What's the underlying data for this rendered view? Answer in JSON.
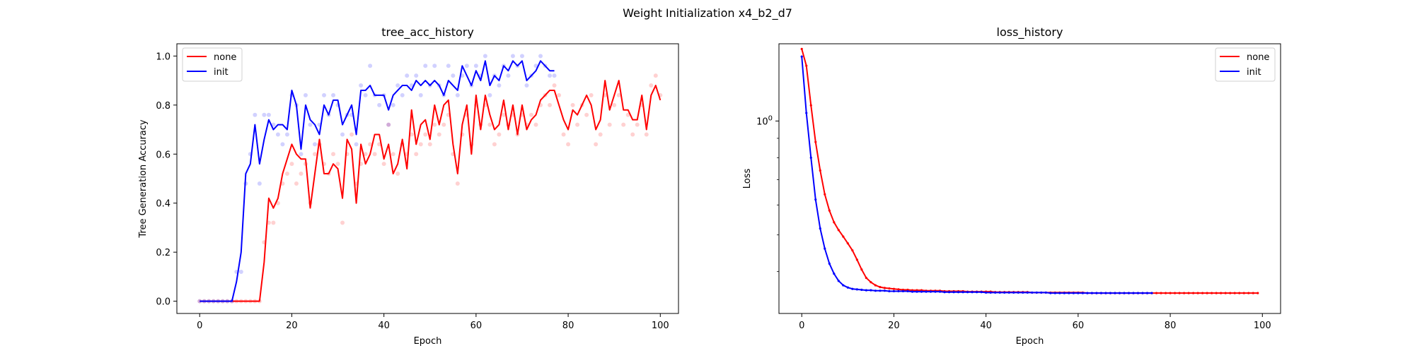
{
  "figure": {
    "suptitle": "Weight Initialization x4_b2_d7"
  },
  "colors": {
    "none": "#ff0000",
    "init": "#0000ff"
  },
  "chart_data": [
    {
      "type": "line",
      "title": "tree_acc_history",
      "xlabel": "Epoch",
      "ylabel": "Tree Generation Accuracy",
      "xlim": [
        -4.95,
        103.95
      ],
      "ylim": [
        -0.05,
        1.05
      ],
      "yscale": "linear",
      "xticks": [
        0,
        20,
        40,
        60,
        80,
        100
      ],
      "yticks": [
        0.0,
        0.2,
        0.4,
        0.6,
        0.8,
        1.0
      ],
      "xtick_labels": [
        "0",
        "20",
        "40",
        "60",
        "80",
        "100"
      ],
      "ytick_labels": [
        "0.0",
        "0.2",
        "0.4",
        "0.6",
        "0.8",
        "1.0"
      ],
      "legend_loc": "upper left",
      "grid": false,
      "series": [
        {
          "name": "none",
          "color": "#ff0000",
          "x_start": 0,
          "values": [
            0,
            0,
            0,
            0,
            0,
            0,
            0,
            0,
            0,
            0,
            0,
            0,
            0,
            0,
            0.16,
            0.42,
            0.38,
            0.42,
            0.52,
            0.58,
            0.64,
            0.6,
            0.58,
            0.58,
            0.38,
            0.52,
            0.66,
            0.52,
            0.52,
            0.56,
            0.54,
            0.42,
            0.66,
            0.62,
            0.4,
            0.64,
            0.56,
            0.6,
            0.68,
            0.68,
            0.58,
            0.64,
            0.52,
            0.56,
            0.66,
            0.54,
            0.78,
            0.64,
            0.72,
            0.74,
            0.66,
            0.8,
            0.72,
            0.8,
            0.82,
            0.64,
            0.52,
            0.72,
            0.8,
            0.6,
            0.84,
            0.7,
            0.84,
            0.76,
            0.7,
            0.72,
            0.82,
            0.7,
            0.8,
            0.68,
            0.8,
            0.7,
            0.74,
            0.76,
            0.82,
            0.84,
            0.86,
            0.86,
            0.8,
            0.74,
            0.7,
            0.78,
            0.76,
            0.8,
            0.84,
            0.8,
            0.7,
            0.74,
            0.9,
            0.78,
            0.84,
            0.9,
            0.78,
            0.78,
            0.74,
            0.74,
            0.84,
            0.7,
            0.84,
            0.88,
            0.82
          ],
          "raw_scatter": [
            0,
            0,
            0,
            0,
            0,
            0,
            0,
            0,
            0,
            0,
            0,
            0,
            0,
            0,
            0.24,
            0.32,
            0.32,
            0.4,
            0.48,
            0.52,
            0.56,
            0.48,
            0.52,
            0.56,
            0.4,
            0.6,
            0.64,
            0.56,
            0.52,
            0.6,
            0.56,
            0.32,
            0.6,
            0.68,
            0.48,
            0.56,
            0.6,
            0.64,
            0.6,
            0.64,
            0.56,
            0.72,
            0.6,
            0.52,
            0.64,
            0.6,
            0.68,
            0.6,
            0.64,
            0.68,
            0.64,
            0.72,
            0.68,
            0.72,
            0.76,
            0.6,
            0.48,
            0.68,
            0.76,
            0.64,
            0.8,
            0.72,
            0.8,
            0.72,
            0.64,
            0.68,
            0.76,
            0.72,
            0.76,
            0.68,
            0.76,
            0.72,
            0.76,
            0.72,
            0.8,
            0.84,
            0.8,
            0.88,
            0.84,
            0.68,
            0.64,
            0.8,
            0.72,
            0.8,
            0.76,
            0.84,
            0.64,
            0.68,
            0.84,
            0.72,
            0.8,
            0.84,
            0.72,
            0.76,
            0.68,
            0.72,
            0.8,
            0.68,
            0.88,
            0.92,
            0.84
          ]
        },
        {
          "name": "init",
          "color": "#0000ff",
          "x_start": 0,
          "values": [
            0,
            0,
            0,
            0,
            0,
            0,
            0,
            0,
            0.08,
            0.2,
            0.52,
            0.56,
            0.72,
            0.56,
            0.66,
            0.74,
            0.7,
            0.72,
            0.72,
            0.7,
            0.86,
            0.8,
            0.62,
            0.8,
            0.74,
            0.72,
            0.68,
            0.8,
            0.76,
            0.82,
            0.82,
            0.72,
            0.76,
            0.8,
            0.68,
            0.86,
            0.86,
            0.88,
            0.84,
            0.84,
            0.84,
            0.78,
            0.84,
            0.86,
            0.88,
            0.88,
            0.86,
            0.9,
            0.88,
            0.9,
            0.88,
            0.9,
            0.88,
            0.84,
            0.9,
            0.88,
            0.86,
            0.96,
            0.92,
            0.88,
            0.94,
            0.9,
            0.98,
            0.88,
            0.92,
            0.9,
            0.96,
            0.94,
            0.98,
            0.96,
            0.98,
            0.9,
            0.92,
            0.94,
            0.98,
            0.96,
            0.94,
            0.94
          ],
          "raw_scatter": [
            0,
            0,
            0,
            0,
            0,
            0,
            0,
            0,
            0.12,
            0.12,
            0.48,
            0.6,
            0.76,
            0.48,
            0.76,
            0.76,
            0.72,
            0.68,
            0.64,
            0.68,
            0.84,
            0.8,
            0.6,
            0.84,
            0.72,
            0.64,
            0.72,
            0.84,
            0.76,
            0.84,
            0.8,
            0.68,
            0.76,
            0.76,
            0.64,
            0.88,
            0.84,
            0.96,
            0.84,
            0.8,
            0.84,
            0.72,
            0.8,
            0.88,
            0.84,
            0.92,
            0.88,
            0.92,
            0.84,
            0.96,
            0.88,
            0.96,
            0.88,
            0.84,
            0.96,
            0.92,
            0.84,
            0.92,
            0.96,
            0.88,
            0.96,
            0.92,
            1.0,
            0.84,
            0.92,
            0.88,
            0.96,
            0.92,
            1.0,
            0.96,
            1.0,
            0.88,
            0.92,
            0.96,
            1.0,
            0.96,
            0.92,
            0.92
          ]
        }
      ]
    },
    {
      "type": "line",
      "title": "loss_history",
      "xlabel": "Epoch",
      "ylabel": "Loss",
      "xlim": [
        -4.95,
        103.95
      ],
      "ylim": [
        0.31,
        1.6
      ],
      "yscale": "log",
      "xticks": [
        0,
        20,
        40,
        60,
        80,
        100
      ],
      "yticks": [
        1
      ],
      "xtick_labels": [
        "0",
        "20",
        "40",
        "60",
        "80",
        "100"
      ],
      "ytick_labels": [
        "10^0"
      ],
      "legend_loc": "upper right",
      "grid": false,
      "series": [
        {
          "name": "none",
          "color": "#ff0000",
          "x_start": 0,
          "values": [
            1.55,
            1.4,
            1.1,
            0.88,
            0.74,
            0.64,
            0.58,
            0.54,
            0.515,
            0.495,
            0.475,
            0.455,
            0.43,
            0.405,
            0.385,
            0.375,
            0.368,
            0.364,
            0.362,
            0.361,
            0.36,
            0.359,
            0.358,
            0.358,
            0.357,
            0.357,
            0.357,
            0.356,
            0.356,
            0.356,
            0.356,
            0.355,
            0.355,
            0.355,
            0.355,
            0.355,
            0.354,
            0.354,
            0.354,
            0.354,
            0.354,
            0.354,
            0.353,
            0.353,
            0.353,
            0.353,
            0.353,
            0.353,
            0.353,
            0.353,
            0.352,
            0.352,
            0.352,
            0.352,
            0.352,
            0.352,
            0.352,
            0.352,
            0.352,
            0.352,
            0.352,
            0.352,
            0.351,
            0.351,
            0.351,
            0.351,
            0.351,
            0.351,
            0.351,
            0.351,
            0.351,
            0.351,
            0.351,
            0.351,
            0.351,
            0.351,
            0.351,
            0.351,
            0.351,
            0.351,
            0.351,
            0.351,
            0.351,
            0.351,
            0.351,
            0.351,
            0.351,
            0.351,
            0.351,
            0.351,
            0.351,
            0.351,
            0.351,
            0.351,
            0.351,
            0.351,
            0.351,
            0.351,
            0.351,
            0.351
          ]
        },
        {
          "name": "init",
          "color": "#0000ff",
          "x_start": 0,
          "values": [
            1.48,
            1.05,
            0.8,
            0.62,
            0.52,
            0.46,
            0.42,
            0.395,
            0.378,
            0.368,
            0.363,
            0.36,
            0.359,
            0.358,
            0.357,
            0.357,
            0.356,
            0.356,
            0.356,
            0.355,
            0.355,
            0.355,
            0.355,
            0.355,
            0.354,
            0.354,
            0.354,
            0.354,
            0.354,
            0.354,
            0.354,
            0.353,
            0.353,
            0.353,
            0.353,
            0.353,
            0.353,
            0.353,
            0.353,
            0.353,
            0.352,
            0.352,
            0.352,
            0.352,
            0.352,
            0.352,
            0.352,
            0.352,
            0.352,
            0.352,
            0.352,
            0.352,
            0.352,
            0.352,
            0.351,
            0.351,
            0.351,
            0.351,
            0.351,
            0.351,
            0.351,
            0.351,
            0.351,
            0.351,
            0.351,
            0.351,
            0.351,
            0.351,
            0.351,
            0.351,
            0.351,
            0.351,
            0.351,
            0.351,
            0.351,
            0.351,
            0.351
          ]
        }
      ]
    }
  ]
}
